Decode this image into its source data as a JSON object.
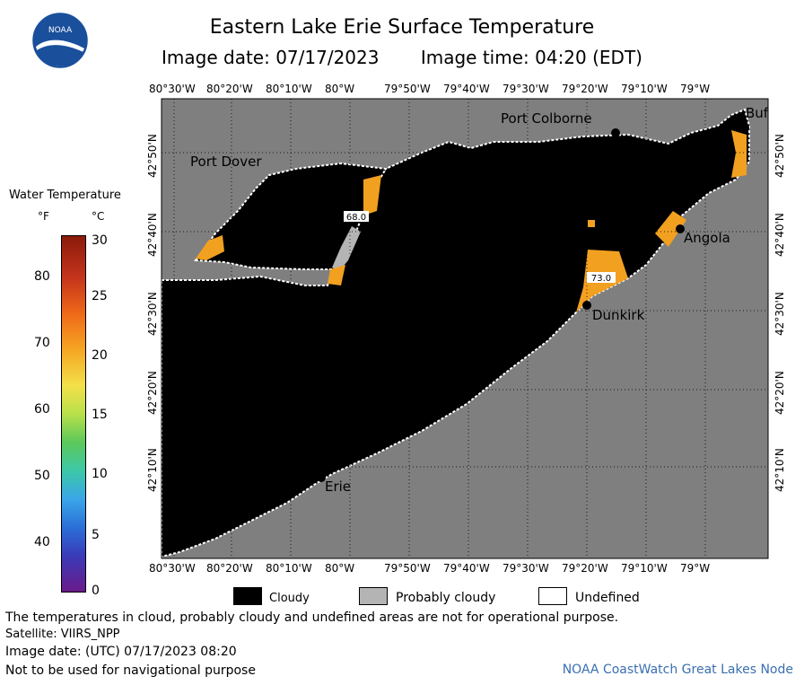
{
  "title": "Eastern Lake Erie Surface Temperature",
  "image_date": "Image date: 07/17/2023",
  "image_time": "Image time: 04:20 (EDT)",
  "logo_text": "NOAA",
  "legend": {
    "title": "Water Temperature",
    "unit_f": "°F",
    "unit_c": "°C",
    "f_ticks": [
      "80",
      "70",
      "60",
      "50",
      "40"
    ],
    "c_ticks": [
      "30",
      "25",
      "20",
      "15",
      "10",
      "5",
      "0"
    ]
  },
  "lon_labels": [
    "80°30'W",
    "80°20'W",
    "80°10'W",
    "80°W",
    "79°50'W",
    "79°40'W",
    "79°30'W",
    "79°20'W",
    "79°10'W",
    "79°W"
  ],
  "lat_labels": [
    "42°50'N",
    "42°40'N",
    "42°30'N",
    "42°20'N",
    "42°10'N"
  ],
  "cities": {
    "port_colborne": "Port Colborne",
    "buffalo": "Buf",
    "port_dover": "Port Dover",
    "angola": "Angola",
    "dunkirk": "Dunkirk",
    "erie": "Erie"
  },
  "temp_labels": {
    "west": "68.0",
    "east": "73.0"
  },
  "key": {
    "cloudy": "Cloudy",
    "probably_cloudy": "Probably cloudy",
    "undefined": "Undefined"
  },
  "footer": {
    "disclaimer": "The temperatures in cloud, probably cloudy and undefined areas are not for operational purpose.",
    "satellite": "Satellite: VIIRS_NPP",
    "utc_date": "Image date: (UTC) 07/17/2023  08:20",
    "nav_warning": "Not to be used for navigational purpose",
    "credit": "NOAA CoastWatch Great Lakes Node"
  },
  "colors": {
    "land": "#7f7f7f",
    "cloud": "#000000",
    "prob_cloud": "#b4b4b4",
    "water_warm": "#f2a020"
  }
}
